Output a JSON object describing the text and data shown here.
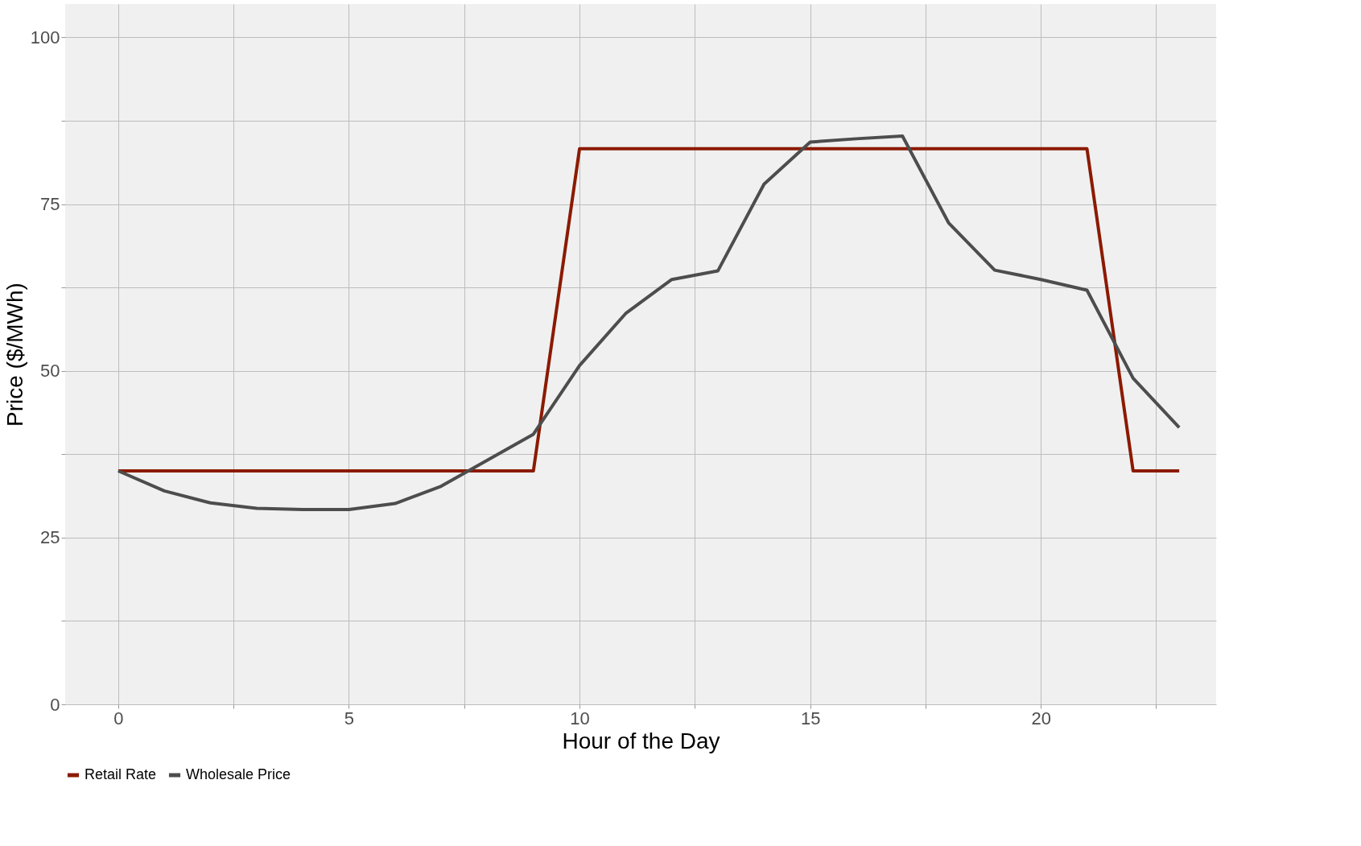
{
  "chart_data": {
    "type": "line",
    "xlabel": "Hour of the Day",
    "ylabel": "Price ($/MWh)",
    "xlim": [
      -1.15,
      23.8
    ],
    "ylim": [
      0,
      105
    ],
    "xticks": [
      0,
      {
        "value": 2.5,
        "label": null
      },
      5,
      {
        "value": 7.5,
        "label": null
      },
      10,
      {
        "value": 12.5,
        "label": null
      },
      15,
      {
        "value": 17.5,
        "label": null
      },
      20,
      {
        "value": 22.5,
        "label": null
      }
    ],
    "yticks": [
      0,
      {
        "value": 12.5,
        "label": null
      },
      25,
      {
        "value": 37.5,
        "label": null
      },
      50,
      {
        "value": 62.5,
        "label": null
      },
      75,
      {
        "value": 87.5,
        "label": null
      },
      100
    ],
    "grid": true,
    "legend": "bottom",
    "marker": "none",
    "line_style": "solid",
    "x": [
      0,
      1,
      2,
      3,
      4,
      5,
      6,
      7,
      8,
      9,
      10,
      11,
      12,
      13,
      14,
      15,
      16,
      17,
      18,
      19,
      20,
      21,
      22,
      23
    ],
    "series": [
      {
        "name": "Retail Rate",
        "color": "#8b1a00",
        "values": [
          35,
          35,
          35,
          35,
          35,
          35,
          35,
          35,
          35,
          35,
          83.3,
          83.3,
          83.3,
          83.3,
          83.3,
          83.3,
          83.3,
          83.3,
          83.3,
          83.3,
          83.3,
          83.3,
          35,
          35
        ]
      },
      {
        "name": "Wholesale Price",
        "color": "#4d4d4d",
        "values": [
          35,
          32,
          30.2,
          29.4,
          29.2,
          29.2,
          30.1,
          32.7,
          36.6,
          40.5,
          50.8,
          58.6,
          63.7,
          65,
          78,
          84.3,
          84.8,
          85.2,
          72.2,
          65.1,
          63.7,
          62.1,
          48.9,
          41.5
        ]
      }
    ]
  }
}
